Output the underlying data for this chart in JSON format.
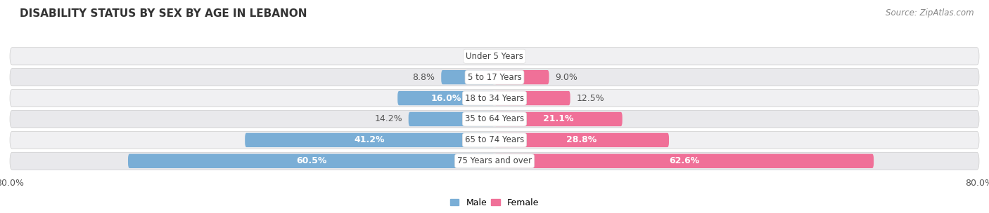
{
  "title": "DISABILITY STATUS BY SEX BY AGE IN LEBANON",
  "source": "Source: ZipAtlas.com",
  "categories": [
    "Under 5 Years",
    "5 to 17 Years",
    "18 to 34 Years",
    "35 to 64 Years",
    "65 to 74 Years",
    "75 Years and over"
  ],
  "male_values": [
    0.0,
    8.8,
    16.0,
    14.2,
    41.2,
    60.5
  ],
  "female_values": [
    0.0,
    9.0,
    12.5,
    21.1,
    28.8,
    62.6
  ],
  "male_color": "#7aaed6",
  "female_color": "#f07098",
  "male_color_light": "#aaccee",
  "female_color_light": "#f8b0c8",
  "male_label": "Male",
  "female_label": "Female",
  "x_max": 80.0,
  "bg_color": "#ffffff",
  "row_color_1": "#f0f0f0",
  "row_color_2": "#e8e8e8",
  "title_fontsize": 11,
  "source_fontsize": 8.5,
  "label_fontsize": 9,
  "category_fontsize": 8.5,
  "bar_height": 0.68,
  "value_inside_threshold": 15.0
}
